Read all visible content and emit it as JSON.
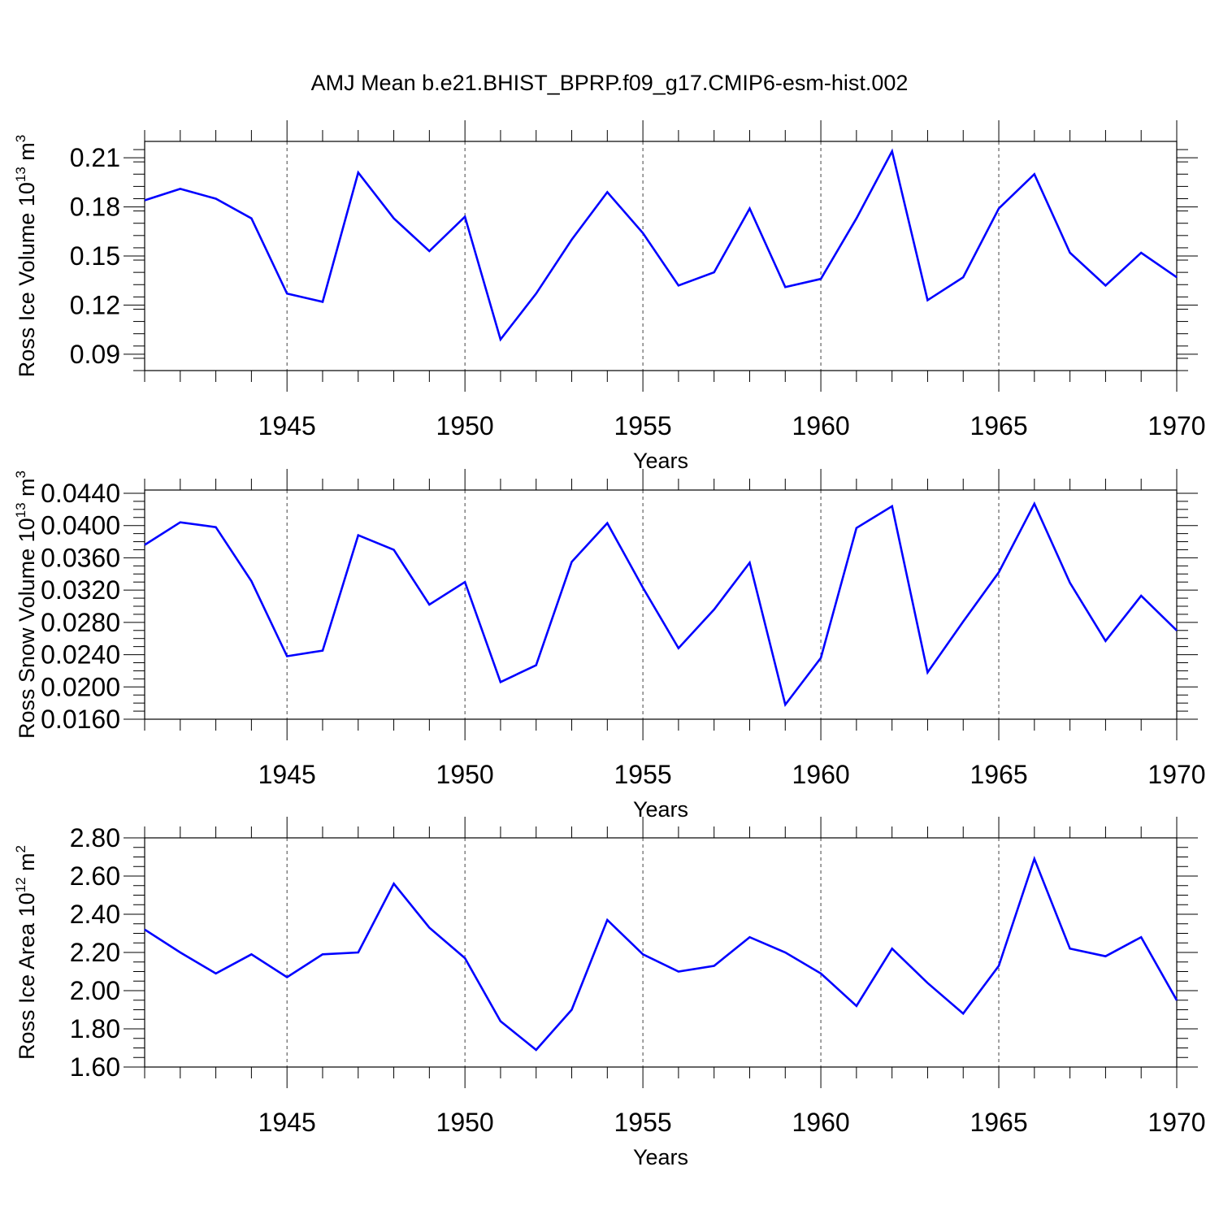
{
  "figure_title": "AMJ Mean b.e21.BHIST_BPRP.f09_g17.CMIP6-esm-hist.002",
  "line_color": "#0000ff",
  "chart_data": [
    {
      "type": "line",
      "title": "",
      "xlabel": "Years",
      "ylabel": {
        "main": "Ross Ice Volume 10",
        "exp": "13",
        "unit": " m",
        "unit_exp": "3"
      },
      "xlim": [
        1941,
        1970
      ],
      "ylim": [
        0.08,
        0.22
      ],
      "xticks": [
        1945,
        1950,
        1955,
        1960,
        1965,
        1970
      ],
      "yticks": [
        0.09,
        0.12,
        0.15,
        0.18,
        0.21
      ],
      "ytick_labels": [
        "0.09",
        "0.12",
        "0.15",
        "0.18",
        "0.21"
      ],
      "x": [
        1941,
        1942,
        1943,
        1944,
        1945,
        1946,
        1947,
        1948,
        1949,
        1950,
        1951,
        1952,
        1953,
        1954,
        1955,
        1956,
        1957,
        1958,
        1959,
        1960,
        1961,
        1962,
        1963,
        1964,
        1965,
        1966,
        1967,
        1968,
        1969,
        1970
      ],
      "series": [
        {
          "values": [
            0.184,
            0.191,
            0.185,
            0.173,
            0.127,
            0.122,
            0.201,
            0.173,
            0.153,
            0.174,
            0.099,
            0.127,
            0.16,
            0.189,
            0.164,
            0.132,
            0.14,
            0.179,
            0.131,
            0.136,
            0.173,
            0.214,
            0.123,
            0.137,
            0.179,
            0.2,
            0.152,
            0.132,
            0.152,
            0.137
          ]
        }
      ],
      "grid": "vertical-dashed-at-major-x"
    },
    {
      "type": "line",
      "title": "",
      "xlabel": "Years",
      "ylabel": {
        "main": "Ross Snow Volume 10",
        "exp": "13",
        "unit": " m",
        "unit_exp": "3"
      },
      "xlim": [
        1941,
        1970
      ],
      "ylim": [
        0.016,
        0.0444
      ],
      "xticks": [
        1945,
        1950,
        1955,
        1960,
        1965,
        1970
      ],
      "yticks": [
        0.016,
        0.02,
        0.024,
        0.028,
        0.032,
        0.036,
        0.04,
        0.044
      ],
      "ytick_labels": [
        "0.0160",
        "0.0200",
        "0.0240",
        "0.0280",
        "0.0320",
        "0.0360",
        "0.0400",
        "0.0440"
      ],
      "x": [
        1941,
        1942,
        1943,
        1944,
        1945,
        1946,
        1947,
        1948,
        1949,
        1950,
        1951,
        1952,
        1953,
        1954,
        1955,
        1956,
        1957,
        1958,
        1959,
        1960,
        1961,
        1962,
        1963,
        1964,
        1965,
        1966,
        1967,
        1968,
        1969,
        1970
      ],
      "series": [
        {
          "values": [
            0.0376,
            0.0404,
            0.0398,
            0.0331,
            0.0238,
            0.0245,
            0.0388,
            0.037,
            0.0302,
            0.033,
            0.0206,
            0.0227,
            0.0355,
            0.0403,
            0.0323,
            0.0248,
            0.0296,
            0.0354,
            0.0178,
            0.0236,
            0.0397,
            0.0424,
            0.0218,
            0.0281,
            0.0342,
            0.0427,
            0.0329,
            0.0257,
            0.0313,
            0.027
          ]
        }
      ],
      "grid": "vertical-dashed-at-major-x"
    },
    {
      "type": "line",
      "title": "",
      "xlabel": "Years",
      "ylabel": {
        "main": "Ross Ice Area 10",
        "exp": "12",
        "unit": " m",
        "unit_exp": "2"
      },
      "xlim": [
        1941,
        1970
      ],
      "ylim": [
        1.6,
        2.8
      ],
      "xticks": [
        1945,
        1950,
        1955,
        1960,
        1965,
        1970
      ],
      "yticks": [
        1.6,
        1.8,
        2.0,
        2.2,
        2.4,
        2.6,
        2.8
      ],
      "ytick_labels": [
        "1.60",
        "1.80",
        "2.00",
        "2.20",
        "2.40",
        "2.60",
        "2.80"
      ],
      "x": [
        1941,
        1942,
        1943,
        1944,
        1945,
        1946,
        1947,
        1948,
        1949,
        1950,
        1951,
        1952,
        1953,
        1954,
        1955,
        1956,
        1957,
        1958,
        1959,
        1960,
        1961,
        1962,
        1963,
        1964,
        1965,
        1966,
        1967,
        1968,
        1969,
        1970
      ],
      "series": [
        {
          "values": [
            2.32,
            2.2,
            2.09,
            2.19,
            2.07,
            2.19,
            2.2,
            2.56,
            2.33,
            2.17,
            1.84,
            1.69,
            1.9,
            2.37,
            2.19,
            2.1,
            2.13,
            2.28,
            2.2,
            2.09,
            1.92,
            2.22,
            2.04,
            1.88,
            2.13,
            2.69,
            2.22,
            2.18,
            2.28,
            1.95
          ]
        }
      ],
      "grid": "vertical-dashed-at-major-x"
    }
  ]
}
